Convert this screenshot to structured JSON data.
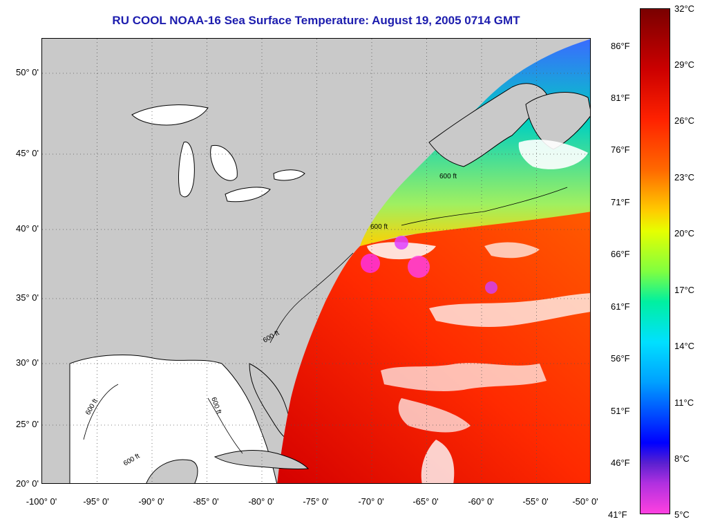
{
  "title": "RU COOL  NOAA-16  Sea Surface Temperature:  August 19, 2005 0714 GMT",
  "colors": {
    "land": "#c9c9c9",
    "title": "#1c1cae",
    "no_data": "#ffffff"
  },
  "map": {
    "lat_labels": [
      "50° 0'",
      "45° 0'",
      "40° 0'",
      "35° 0'",
      "30° 0'",
      "25° 0'",
      "20° 0'"
    ],
    "lon_labels": [
      "-100° 0'",
      "-95° 0'",
      "-90° 0'",
      "-85° 0'",
      "-80° 0'",
      "-75° 0'",
      "-70° 0'",
      "-65° 0'",
      "-60° 0'",
      "-55° 0'",
      "-50° 0'"
    ],
    "isobath_label": "600 ft",
    "lat_range": [
      20,
      52.5
    ],
    "lon_range": [
      -100,
      -50
    ]
  },
  "colorbar": {
    "fahrenheit_labels": [
      "86°F",
      "81°F",
      "76°F",
      "71°F",
      "66°F",
      "61°F",
      "56°F",
      "51°F",
      "46°F",
      "41°F"
    ],
    "celsius_labels": [
      "32°C",
      "29°C",
      "26°C",
      "23°C",
      "20°C",
      "17°C",
      "14°C",
      "11°C",
      "8°C",
      "5°C"
    ]
  }
}
